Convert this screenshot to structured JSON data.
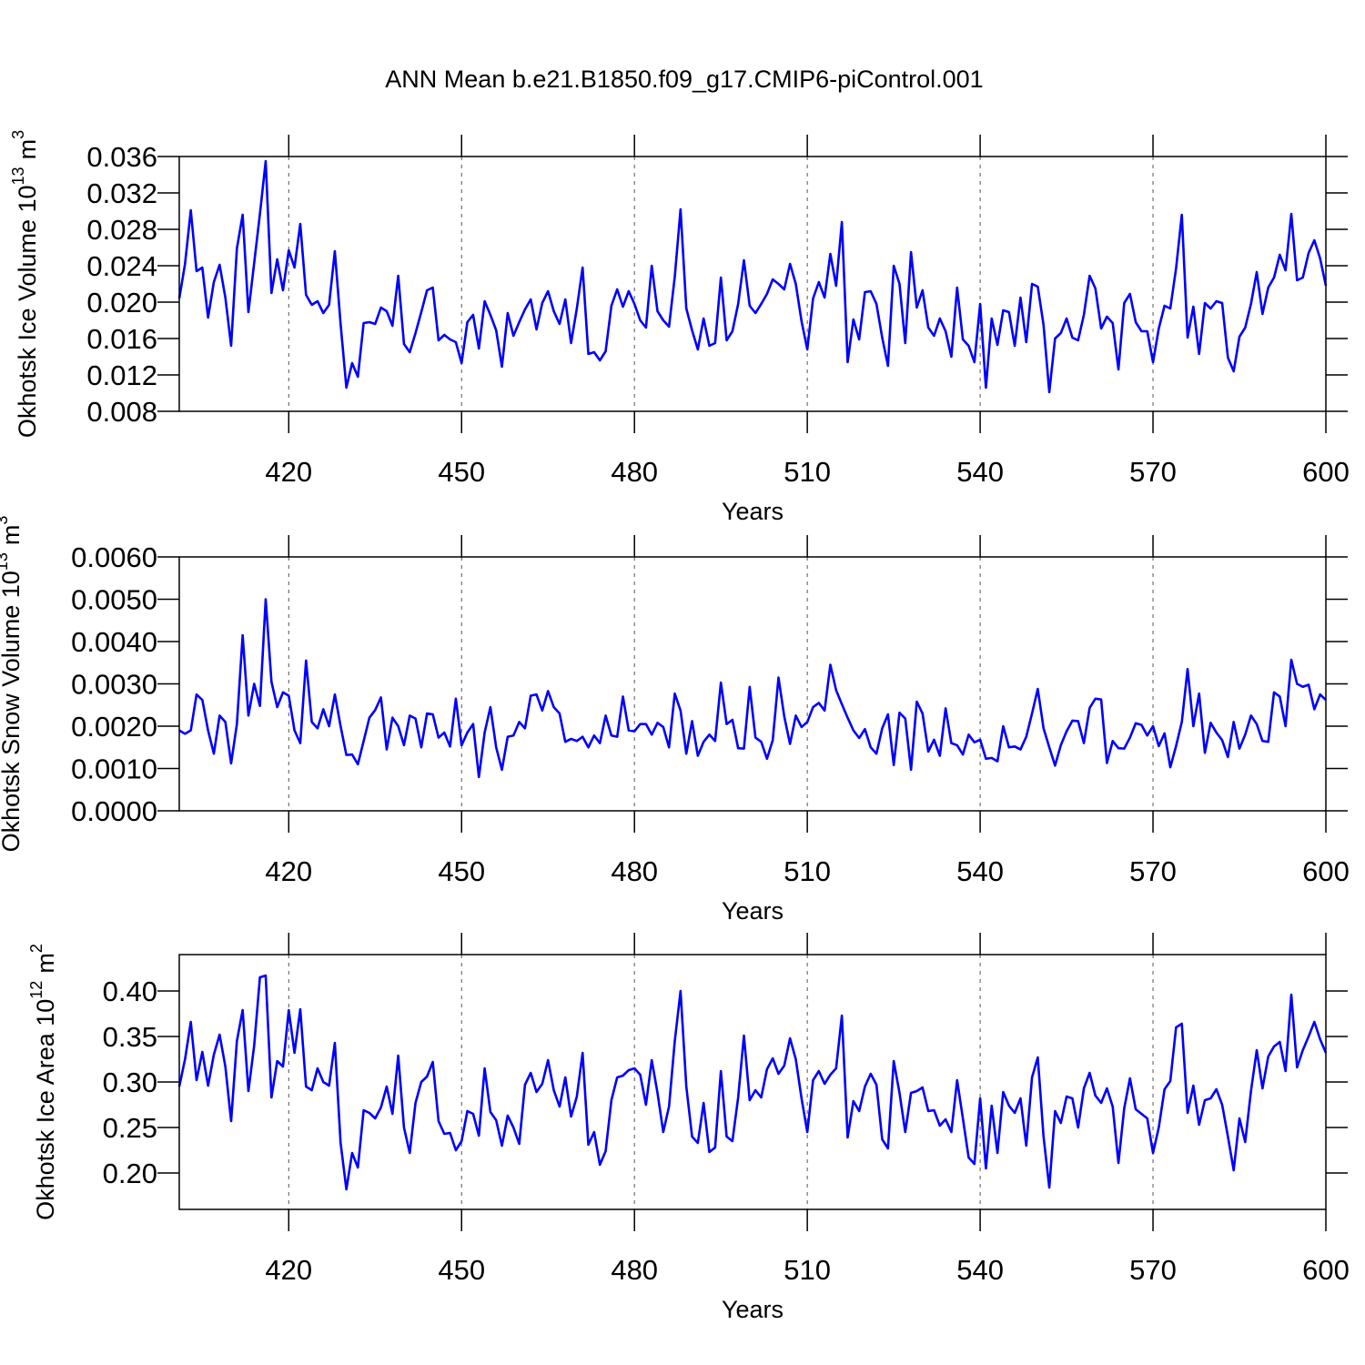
{
  "title": "ANN Mean b.e21.B1850.f09_g17.CMIP6-piControl.001",
  "chart_data": [
    {
      "type": "line",
      "color": "#0000ff",
      "grid": true,
      "xlabel": "Years",
      "ylabel": {
        "text": "Okhotsk Ice Volume 10",
        "exponent": "13",
        "unit": "m",
        "unit_exponent": "3"
      },
      "xlim": [
        401,
        600
      ],
      "xticks": [
        420,
        450,
        480,
        510,
        540,
        570,
        600
      ],
      "ylim": [
        0.008,
        0.036
      ],
      "yticks": [
        0.008,
        0.012,
        0.016,
        {
          "value": 0.02,
          "label": "0.020"
        },
        0.024,
        0.028,
        0.032,
        0.036
      ],
      "x": [
        401,
        402,
        403,
        404,
        405,
        406,
        407,
        408,
        409,
        410,
        411,
        412,
        413,
        414,
        415,
        416,
        417,
        418,
        419,
        420,
        421,
        422,
        423,
        424,
        425,
        426,
        427,
        428,
        429,
        430,
        431,
        432,
        433,
        434,
        435,
        436,
        437,
        438,
        439,
        440,
        441,
        442,
        443,
        444,
        445,
        446,
        447,
        448,
        449,
        450,
        451,
        452,
        453,
        454,
        455,
        456,
        457,
        458,
        459,
        460,
        461,
        462,
        463,
        464,
        465,
        466,
        467,
        468,
        469,
        470,
        471,
        472,
        473,
        474,
        475,
        476,
        477,
        478,
        479,
        480,
        481,
        482,
        483,
        484,
        485,
        486,
        487,
        488,
        489,
        490,
        491,
        492,
        493,
        494,
        495,
        496,
        497,
        498,
        499,
        500,
        501,
        502,
        503,
        504,
        505,
        506,
        507,
        508,
        509,
        510,
        511,
        512,
        513,
        514,
        515,
        516,
        517,
        518,
        519,
        520,
        521,
        522,
        523,
        524,
        525,
        526,
        527,
        528,
        529,
        530,
        531,
        532,
        533,
        534,
        535,
        536,
        537,
        538,
        539,
        540,
        541,
        542,
        543,
        544,
        545,
        546,
        547,
        548,
        549,
        550,
        551,
        552,
        553,
        554,
        555,
        556,
        557,
        558,
        559,
        560,
        561,
        562,
        563,
        564,
        565,
        566,
        567,
        568,
        569,
        570,
        571,
        572,
        573,
        574,
        575,
        576,
        577,
        578,
        579,
        580,
        581,
        582,
        583,
        584,
        585,
        586,
        587,
        588,
        589,
        590,
        591,
        592,
        593,
        594,
        595,
        596,
        597,
        598,
        599,
        600
      ],
      "values": [
        0.0204,
        0.0242,
        0.0301,
        0.0234,
        0.0238,
        0.0183,
        0.0222,
        0.0241,
        0.0205,
        0.0152,
        0.0259,
        0.0296,
        0.0189,
        0.0243,
        0.0297,
        0.0355,
        0.021,
        0.0247,
        0.0213,
        0.0257,
        0.0238,
        0.0286,
        0.0208,
        0.0197,
        0.0201,
        0.0188,
        0.0197,
        0.0256,
        0.0176,
        0.0106,
        0.0133,
        0.0118,
        0.0177,
        0.0178,
        0.0176,
        0.0194,
        0.019,
        0.0174,
        0.0229,
        0.0154,
        0.0145,
        0.0166,
        0.0189,
        0.0213,
        0.0216,
        0.0158,
        0.0164,
        0.0159,
        0.0156,
        0.0133,
        0.0178,
        0.0186,
        0.0149,
        0.0201,
        0.0186,
        0.0169,
        0.0129,
        0.0188,
        0.0163,
        0.0178,
        0.0192,
        0.0203,
        0.017,
        0.0199,
        0.0212,
        0.019,
        0.0176,
        0.0203,
        0.0155,
        0.0193,
        0.0238,
        0.0143,
        0.0145,
        0.0136,
        0.0146,
        0.0196,
        0.0214,
        0.0195,
        0.0212,
        0.0198,
        0.018,
        0.0172,
        0.024,
        0.019,
        0.018,
        0.0173,
        0.0228,
        0.0302,
        0.0193,
        0.0169,
        0.0148,
        0.0182,
        0.0152,
        0.0155,
        0.0227,
        0.0158,
        0.0168,
        0.0198,
        0.0246,
        0.0196,
        0.0188,
        0.0198,
        0.0209,
        0.0225,
        0.022,
        0.0214,
        0.0242,
        0.022,
        0.0179,
        0.0148,
        0.0204,
        0.0222,
        0.0205,
        0.0253,
        0.0218,
        0.0288,
        0.0134,
        0.0181,
        0.0159,
        0.0211,
        0.0212,
        0.0198,
        0.0161,
        0.013,
        0.024,
        0.022,
        0.0155,
        0.0255,
        0.0194,
        0.0213,
        0.0172,
        0.0163,
        0.0182,
        0.0168,
        0.014,
        0.0216,
        0.0159,
        0.0152,
        0.0134,
        0.0198,
        0.0106,
        0.0182,
        0.0153,
        0.0191,
        0.0189,
        0.0152,
        0.0205,
        0.0156,
        0.022,
        0.0217,
        0.0175,
        0.0101,
        0.016,
        0.0166,
        0.0182,
        0.0161,
        0.0158,
        0.0186,
        0.0229,
        0.0215,
        0.0171,
        0.0184,
        0.0177,
        0.0126,
        0.0199,
        0.0209,
        0.0178,
        0.0168,
        0.0168,
        0.0134,
        0.0171,
        0.0196,
        0.0193,
        0.0237,
        0.0296,
        0.0161,
        0.0195,
        0.0143,
        0.0199,
        0.0193,
        0.0201,
        0.0199,
        0.0139,
        0.0124,
        0.0162,
        0.0172,
        0.0198,
        0.0233,
        0.0187,
        0.0216,
        0.0227,
        0.0252,
        0.0235,
        0.0297,
        0.0224,
        0.0227,
        0.0254,
        0.0268,
        0.0248,
        0.0218
      ]
    },
    {
      "type": "line",
      "color": "#0000ff",
      "grid": true,
      "xlabel": "Years",
      "ylabel": {
        "text": "Okhotsk Snow Volume 10",
        "exponent": "13",
        "unit": "m",
        "unit_exponent": "3"
      },
      "xlim": [
        401,
        600
      ],
      "xticks": [
        420,
        450,
        480,
        510,
        540,
        570,
        600
      ],
      "ylim": [
        0,
        0.006
      ],
      "yticks": [
        {
          "value": 0,
          "label": "0.0000"
        },
        {
          "value": 0.001,
          "label": "0.0010"
        },
        {
          "value": 0.002,
          "label": "0.0020"
        },
        {
          "value": 0.003,
          "label": "0.0030"
        },
        {
          "value": 0.004,
          "label": "0.0040"
        },
        {
          "value": 0.005,
          "label": "0.0050"
        },
        {
          "value": 0.006,
          "label": "0.0060"
        }
      ],
      "x": [
        401,
        402,
        403,
        404,
        405,
        406,
        407,
        408,
        409,
        410,
        411,
        412,
        413,
        414,
        415,
        416,
        417,
        418,
        419,
        420,
        421,
        422,
        423,
        424,
        425,
        426,
        427,
        428,
        429,
        430,
        431,
        432,
        433,
        434,
        435,
        436,
        437,
        438,
        439,
        440,
        441,
        442,
        443,
        444,
        445,
        446,
        447,
        448,
        449,
        450,
        451,
        452,
        453,
        454,
        455,
        456,
        457,
        458,
        459,
        460,
        461,
        462,
        463,
        464,
        465,
        466,
        467,
        468,
        469,
        470,
        471,
        472,
        473,
        474,
        475,
        476,
        477,
        478,
        479,
        480,
        481,
        482,
        483,
        484,
        485,
        486,
        487,
        488,
        489,
        490,
        491,
        492,
        493,
        494,
        495,
        496,
        497,
        498,
        499,
        500,
        501,
        502,
        503,
        504,
        505,
        506,
        507,
        508,
        509,
        510,
        511,
        512,
        513,
        514,
        515,
        516,
        517,
        518,
        519,
        520,
        521,
        522,
        523,
        524,
        525,
        526,
        527,
        528,
        529,
        530,
        531,
        532,
        533,
        534,
        535,
        536,
        537,
        538,
        539,
        540,
        541,
        542,
        543,
        544,
        545,
        546,
        547,
        548,
        549,
        550,
        551,
        552,
        553,
        554,
        555,
        556,
        557,
        558,
        559,
        560,
        561,
        562,
        563,
        564,
        565,
        566,
        567,
        568,
        569,
        570,
        571,
        572,
        573,
        574,
        575,
        576,
        577,
        578,
        579,
        580,
        581,
        582,
        583,
        584,
        585,
        586,
        587,
        588,
        589,
        590,
        591,
        592,
        593,
        594,
        595,
        596,
        597,
        598,
        599,
        600
      ],
      "values": [
        0.0019,
        0.00182,
        0.0019,
        0.00275,
        0.00262,
        0.0019,
        0.00135,
        0.00225,
        0.0021,
        0.00112,
        0.00205,
        0.00415,
        0.00225,
        0.003,
        0.00248,
        0.005,
        0.00305,
        0.00245,
        0.0028,
        0.00272,
        0.0019,
        0.0016,
        0.00355,
        0.0021,
        0.00195,
        0.0024,
        0.002,
        0.00275,
        0.002,
        0.00132,
        0.00133,
        0.0011,
        0.00165,
        0.0022,
        0.00238,
        0.00268,
        0.00145,
        0.0022,
        0.002,
        0.00155,
        0.00225,
        0.00218,
        0.0015,
        0.0023,
        0.00228,
        0.00173,
        0.00185,
        0.00152,
        0.00265,
        0.00155,
        0.00185,
        0.00205,
        0.0008,
        0.00185,
        0.00245,
        0.0015,
        0.00097,
        0.00175,
        0.00178,
        0.0021,
        0.00195,
        0.00272,
        0.00275,
        0.00237,
        0.00283,
        0.00245,
        0.0023,
        0.00163,
        0.0017,
        0.00165,
        0.00175,
        0.0015,
        0.00178,
        0.0016,
        0.00225,
        0.00178,
        0.00175,
        0.0027,
        0.0019,
        0.00188,
        0.00205,
        0.00205,
        0.0018,
        0.00208,
        0.00198,
        0.0015,
        0.00277,
        0.00237,
        0.00135,
        0.00212,
        0.0013,
        0.00163,
        0.0018,
        0.00165,
        0.00303,
        0.00205,
        0.00215,
        0.00148,
        0.00147,
        0.00293,
        0.00173,
        0.00163,
        0.00123,
        0.00167,
        0.00315,
        0.00223,
        0.00158,
        0.00225,
        0.00198,
        0.0021,
        0.00245,
        0.00255,
        0.00237,
        0.00345,
        0.00285,
        0.00252,
        0.0022,
        0.0019,
        0.00172,
        0.00193,
        0.0015,
        0.00135,
        0.00195,
        0.00228,
        0.00108,
        0.00232,
        0.00218,
        0.00097,
        0.00258,
        0.0023,
        0.0014,
        0.00168,
        0.0013,
        0.00242,
        0.0016,
        0.00155,
        0.00133,
        0.0018,
        0.00162,
        0.00168,
        0.00123,
        0.00125,
        0.00117,
        0.002,
        0.0015,
        0.00152,
        0.00145,
        0.00175,
        0.0023,
        0.00288,
        0.00195,
        0.0015,
        0.00107,
        0.00155,
        0.00188,
        0.00213,
        0.00212,
        0.0016,
        0.00243,
        0.00265,
        0.00263,
        0.00113,
        0.00165,
        0.00148,
        0.00147,
        0.00173,
        0.00207,
        0.00203,
        0.00178,
        0.002,
        0.00153,
        0.00183,
        0.00103,
        0.00153,
        0.0021,
        0.00335,
        0.002,
        0.00277,
        0.00137,
        0.00208,
        0.00185,
        0.00167,
        0.00127,
        0.0021,
        0.00147,
        0.0018,
        0.00225,
        0.00205,
        0.00165,
        0.00163,
        0.0028,
        0.0027,
        0.002,
        0.00357,
        0.003,
        0.00293,
        0.00298,
        0.0024,
        0.00275,
        0.00262
      ]
    },
    {
      "type": "line",
      "color": "#0000ff",
      "grid": true,
      "xlabel": "Years",
      "ylabel": {
        "text": "Okhotsk Ice Area 10",
        "exponent": "12",
        "unit": "m",
        "unit_exponent": "2"
      },
      "xlim": [
        401,
        600
      ],
      "xticks": [
        420,
        450,
        480,
        510,
        540,
        570,
        600
      ],
      "ylim": [
        0.16,
        0.44
      ],
      "yticks": [
        {
          "value": 0.2,
          "label": "0.20"
        },
        0.25,
        {
          "value": 0.3,
          "label": "0.30"
        },
        0.35,
        {
          "value": 0.4,
          "label": "0.40"
        }
      ],
      "x": [
        401,
        402,
        403,
        404,
        405,
        406,
        407,
        408,
        409,
        410,
        411,
        412,
        413,
        414,
        415,
        416,
        417,
        418,
        419,
        420,
        421,
        422,
        423,
        424,
        425,
        426,
        427,
        428,
        429,
        430,
        431,
        432,
        433,
        434,
        435,
        436,
        437,
        438,
        439,
        440,
        441,
        442,
        443,
        444,
        445,
        446,
        447,
        448,
        449,
        450,
        451,
        452,
        453,
        454,
        455,
        456,
        457,
        458,
        459,
        460,
        461,
        462,
        463,
        464,
        465,
        466,
        467,
        468,
        469,
        470,
        471,
        472,
        473,
        474,
        475,
        476,
        477,
        478,
        479,
        480,
        481,
        482,
        483,
        484,
        485,
        486,
        487,
        488,
        489,
        490,
        491,
        492,
        493,
        494,
        495,
        496,
        497,
        498,
        499,
        500,
        501,
        502,
        503,
        504,
        505,
        506,
        507,
        508,
        509,
        510,
        511,
        512,
        513,
        514,
        515,
        516,
        517,
        518,
        519,
        520,
        521,
        522,
        523,
        524,
        525,
        526,
        527,
        528,
        529,
        530,
        531,
        532,
        533,
        534,
        535,
        536,
        537,
        538,
        539,
        540,
        541,
        542,
        543,
        544,
        545,
        546,
        547,
        548,
        549,
        550,
        551,
        552,
        553,
        554,
        555,
        556,
        557,
        558,
        559,
        560,
        561,
        562,
        563,
        564,
        565,
        566,
        567,
        568,
        569,
        570,
        571,
        572,
        573,
        574,
        575,
        576,
        577,
        578,
        579,
        580,
        581,
        582,
        583,
        584,
        585,
        586,
        587,
        588,
        589,
        590,
        591,
        592,
        593,
        594,
        595,
        596,
        597,
        598,
        599,
        600
      ],
      "values": [
        0.295,
        0.325,
        0.366,
        0.302,
        0.333,
        0.296,
        0.33,
        0.352,
        0.317,
        0.257,
        0.345,
        0.379,
        0.29,
        0.34,
        0.415,
        0.417,
        0.283,
        0.323,
        0.317,
        0.379,
        0.332,
        0.38,
        0.295,
        0.291,
        0.315,
        0.3,
        0.296,
        0.343,
        0.233,
        0.182,
        0.222,
        0.206,
        0.269,
        0.266,
        0.26,
        0.272,
        0.295,
        0.265,
        0.329,
        0.25,
        0.222,
        0.277,
        0.3,
        0.306,
        0.322,
        0.257,
        0.243,
        0.244,
        0.225,
        0.235,
        0.268,
        0.265,
        0.241,
        0.315,
        0.267,
        0.258,
        0.23,
        0.263,
        0.25,
        0.232,
        0.297,
        0.31,
        0.289,
        0.298,
        0.324,
        0.291,
        0.273,
        0.305,
        0.262,
        0.284,
        0.332,
        0.231,
        0.245,
        0.209,
        0.224,
        0.28,
        0.305,
        0.307,
        0.313,
        0.315,
        0.308,
        0.275,
        0.324,
        0.288,
        0.245,
        0.273,
        0.345,
        0.4,
        0.295,
        0.24,
        0.233,
        0.277,
        0.223,
        0.228,
        0.312,
        0.24,
        0.235,
        0.283,
        0.351,
        0.28,
        0.291,
        0.283,
        0.314,
        0.326,
        0.309,
        0.318,
        0.348,
        0.325,
        0.282,
        0.245,
        0.302,
        0.312,
        0.298,
        0.308,
        0.315,
        0.373,
        0.239,
        0.279,
        0.268,
        0.295,
        0.309,
        0.297,
        0.237,
        0.227,
        0.323,
        0.288,
        0.245,
        0.288,
        0.29,
        0.294,
        0.268,
        0.269,
        0.252,
        0.259,
        0.245,
        0.302,
        0.26,
        0.217,
        0.21,
        0.282,
        0.205,
        0.274,
        0.222,
        0.289,
        0.274,
        0.266,
        0.282,
        0.23,
        0.305,
        0.327,
        0.24,
        0.184,
        0.268,
        0.255,
        0.284,
        0.282,
        0.25,
        0.293,
        0.31,
        0.285,
        0.277,
        0.293,
        0.273,
        0.211,
        0.271,
        0.304,
        0.27,
        0.265,
        0.26,
        0.222,
        0.25,
        0.292,
        0.301,
        0.36,
        0.364,
        0.266,
        0.296,
        0.253,
        0.28,
        0.282,
        0.292,
        0.275,
        0.24,
        0.203,
        0.26,
        0.234,
        0.29,
        0.335,
        0.293,
        0.328,
        0.339,
        0.344,
        0.312,
        0.396,
        0.316,
        0.335,
        0.35,
        0.366,
        0.347,
        0.332
      ]
    }
  ]
}
